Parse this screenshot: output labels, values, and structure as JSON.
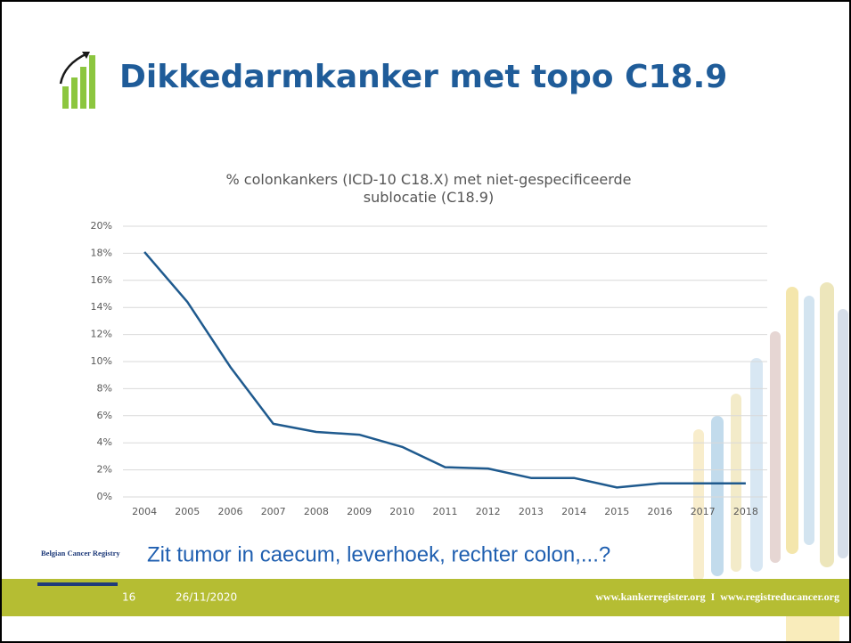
{
  "slide": {
    "title": "Dikkedarmkanker met topo C18.9",
    "question": "Zit tumor in caecum, leverhoek, rechter colon,...?",
    "logo_text": "Belgian Cancer Registry",
    "page_number": "16",
    "date": "26/11/2020",
    "footer_links": "www.kankerregister.org  I  www.registreducancer.org"
  },
  "chart_data": {
    "type": "line",
    "title": "% colonkankers (ICD-10 C18.X) met niet-gespecificeerde sublocatie (C18.9)",
    "categories": [
      "2004",
      "2005",
      "2006",
      "2007",
      "2008",
      "2009",
      "2010",
      "2011",
      "2012",
      "2013",
      "2014",
      "2015",
      "2016",
      "2017",
      "2018"
    ],
    "values": [
      18.1,
      14.4,
      9.6,
      5.4,
      4.8,
      4.6,
      3.7,
      2.2,
      2.1,
      1.4,
      1.4,
      0.7,
      1.0,
      1.0,
      1.0
    ],
    "color": "#1f5a8e",
    "ylim": [
      0,
      20
    ],
    "yticks": [
      {
        "value": 0,
        "label": "0%"
      },
      {
        "value": 2,
        "label": "2%"
      },
      {
        "value": 4,
        "label": "4%"
      },
      {
        "value": 6,
        "label": "6%"
      },
      {
        "value": 8,
        "label": "8%"
      },
      {
        "value": 10,
        "label": "10%"
      },
      {
        "value": 12,
        "label": "12%"
      },
      {
        "value": 14,
        "label": "14%"
      },
      {
        "value": 16,
        "label": "16%"
      },
      {
        "value": 18,
        "label": "18%"
      },
      {
        "value": 20,
        "label": "20%"
      }
    ],
    "grid": true
  }
}
